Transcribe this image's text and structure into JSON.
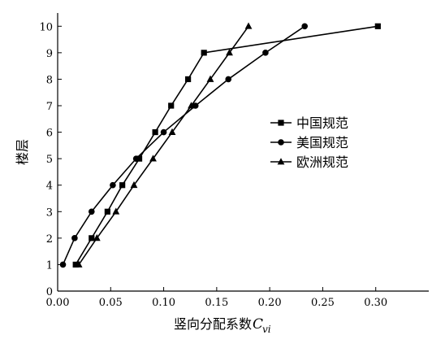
{
  "chart_data": {
    "type": "line",
    "title": "",
    "xlabel": "竖向分配系数",
    "xlabel_symbol": "C",
    "xlabel_subscript": "vi",
    "ylabel": "楼层",
    "xlim": [
      0,
      0.35
    ],
    "ylim": [
      0,
      10.5
    ],
    "x_ticks": [
      0.0,
      0.05,
      0.1,
      0.15,
      0.2,
      0.25,
      0.3
    ],
    "x_tick_labels": [
      "0.00",
      "0.05",
      "0.10",
      "0.15",
      "0.20",
      "0.25",
      "0.30"
    ],
    "y_ticks": [
      0,
      1,
      2,
      3,
      4,
      5,
      6,
      7,
      8,
      9,
      10
    ],
    "y_tick_labels": [
      "0",
      "1",
      "2",
      "3",
      "4",
      "5",
      "6",
      "7",
      "8",
      "9",
      "10"
    ],
    "grid": false,
    "legend_position": "right-center",
    "series": [
      {
        "name": "中国规范",
        "marker": "square",
        "y": [
          1,
          2,
          3,
          4,
          5,
          6,
          7,
          8,
          9,
          10
        ],
        "x": [
          0.017,
          0.032,
          0.047,
          0.061,
          0.077,
          0.092,
          0.107,
          0.123,
          0.138,
          0.302
        ]
      },
      {
        "name": "美国规范",
        "marker": "circle",
        "y": [
          1,
          2,
          3,
          4,
          5,
          6,
          7,
          8,
          9,
          10
        ],
        "x": [
          0.005,
          0.016,
          0.032,
          0.052,
          0.074,
          0.1,
          0.13,
          0.161,
          0.196,
          0.233
        ]
      },
      {
        "name": "欧洲规范",
        "marker": "triangle",
        "y": [
          1,
          2,
          3,
          4,
          5,
          6,
          7,
          8,
          9,
          10
        ],
        "x": [
          0.02,
          0.037,
          0.055,
          0.072,
          0.09,
          0.108,
          0.126,
          0.144,
          0.162,
          0.18
        ]
      }
    ]
  }
}
